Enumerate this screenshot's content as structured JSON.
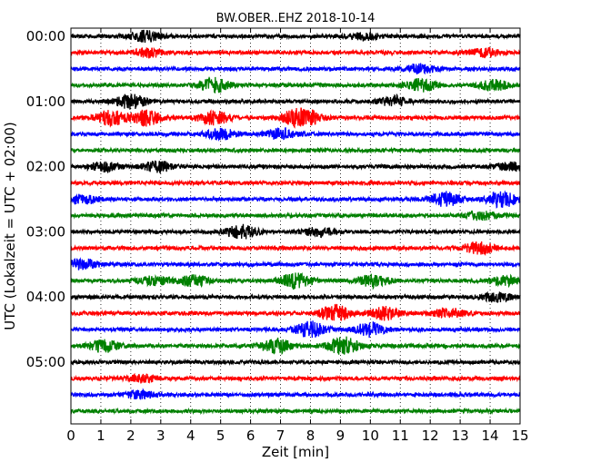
{
  "chart_data": {
    "type": "line",
    "title": "BW.OBER..EHZ 2018-10-14",
    "xlabel": "Zeit  [min]",
    "ylabel": "UTC (Lokalzeit = UTC + 02:00)",
    "xlim": [
      0,
      15
    ],
    "x_ticks": [
      0,
      1,
      2,
      3,
      4,
      5,
      6,
      7,
      8,
      9,
      10,
      11,
      12,
      13,
      14,
      15
    ],
    "x_tick_labels": [
      "0",
      "1",
      "2",
      "3",
      "4",
      "5",
      "6",
      "7",
      "8",
      "9",
      "10",
      "11",
      "12",
      "13",
      "14",
      "15"
    ],
    "y_tick_labels": [
      "00:00",
      "01:00",
      "02:00",
      "03:00",
      "04:00",
      "05:00"
    ],
    "grid": {
      "vertical_dotted": true
    },
    "trace_interval_minutes": 15,
    "color_cycle": [
      "#000000",
      "#ff0000",
      "#0000ff",
      "#008000"
    ],
    "traces": [
      {
        "start": "00:00",
        "color": "#000000",
        "events": [
          [
            2.5,
            0.6
          ],
          [
            9.8,
            0.4
          ]
        ]
      },
      {
        "start": "00:15",
        "color": "#ff0000",
        "events": [
          [
            2.6,
            0.5
          ],
          [
            13.8,
            0.5
          ]
        ]
      },
      {
        "start": "00:30",
        "color": "#0000ff",
        "events": [
          [
            11.7,
            0.5
          ]
        ]
      },
      {
        "start": "00:45",
        "color": "#008000",
        "events": [
          [
            4.8,
            0.8
          ],
          [
            11.7,
            0.7
          ],
          [
            14.1,
            0.6
          ]
        ]
      },
      {
        "start": "01:00",
        "color": "#000000",
        "events": [
          [
            2.0,
            0.8
          ],
          [
            10.8,
            0.6
          ]
        ]
      },
      {
        "start": "01:15",
        "color": "#ff0000",
        "events": [
          [
            1.3,
            0.9
          ],
          [
            2.5,
            0.9
          ],
          [
            4.8,
            0.8
          ],
          [
            7.5,
            0.8
          ],
          [
            8.0,
            0.6
          ]
        ]
      },
      {
        "start": "01:30",
        "color": "#0000ff",
        "events": [
          [
            5.0,
            0.6
          ],
          [
            7.0,
            0.6
          ]
        ]
      },
      {
        "start": "01:45",
        "color": "#008000",
        "events": []
      },
      {
        "start": "02:00",
        "color": "#000000",
        "events": [
          [
            1.1,
            0.5
          ],
          [
            2.9,
            0.6
          ],
          [
            14.7,
            0.5
          ]
        ]
      },
      {
        "start": "02:15",
        "color": "#ff0000",
        "events": []
      },
      {
        "start": "02:30",
        "color": "#0000ff",
        "events": [
          [
            0.4,
            0.5
          ],
          [
            12.5,
            0.8
          ],
          [
            14.4,
            0.9
          ]
        ]
      },
      {
        "start": "02:45",
        "color": "#008000",
        "events": [
          [
            13.7,
            0.5
          ]
        ]
      },
      {
        "start": "03:00",
        "color": "#000000",
        "events": [
          [
            5.7,
            0.8
          ],
          [
            8.3,
            0.5
          ]
        ]
      },
      {
        "start": "03:15",
        "color": "#ff0000",
        "events": [
          [
            13.6,
            0.7
          ]
        ]
      },
      {
        "start": "03:30",
        "color": "#0000ff",
        "events": [
          [
            0.4,
            0.6
          ]
        ]
      },
      {
        "start": "03:45",
        "color": "#008000",
        "events": [
          [
            2.8,
            0.5
          ],
          [
            4.1,
            0.6
          ],
          [
            7.5,
            0.9
          ],
          [
            10.1,
            0.7
          ],
          [
            14.5,
            0.5
          ]
        ]
      },
      {
        "start": "04:00",
        "color": "#000000",
        "events": [
          [
            14.2,
            0.5
          ]
        ]
      },
      {
        "start": "04:15",
        "color": "#ff0000",
        "events": [
          [
            8.8,
            1.0
          ],
          [
            10.5,
            0.7
          ],
          [
            12.6,
            0.6
          ]
        ]
      },
      {
        "start": "04:30",
        "color": "#0000ff",
        "events": [
          [
            8.0,
            0.9
          ],
          [
            10.0,
            0.8
          ]
        ]
      },
      {
        "start": "04:45",
        "color": "#008000",
        "events": [
          [
            1.1,
            0.7
          ],
          [
            6.9,
            0.8
          ],
          [
            9.1,
            1.0
          ]
        ]
      },
      {
        "start": "05:00",
        "color": "#000000",
        "events": []
      },
      {
        "start": "05:15",
        "color": "#ff0000",
        "events": [
          [
            2.4,
            0.4
          ]
        ]
      },
      {
        "start": "05:30",
        "color": "#0000ff",
        "events": [
          [
            2.3,
            0.4
          ]
        ]
      },
      {
        "start": "05:45",
        "color": "#008000",
        "events": []
      }
    ]
  }
}
